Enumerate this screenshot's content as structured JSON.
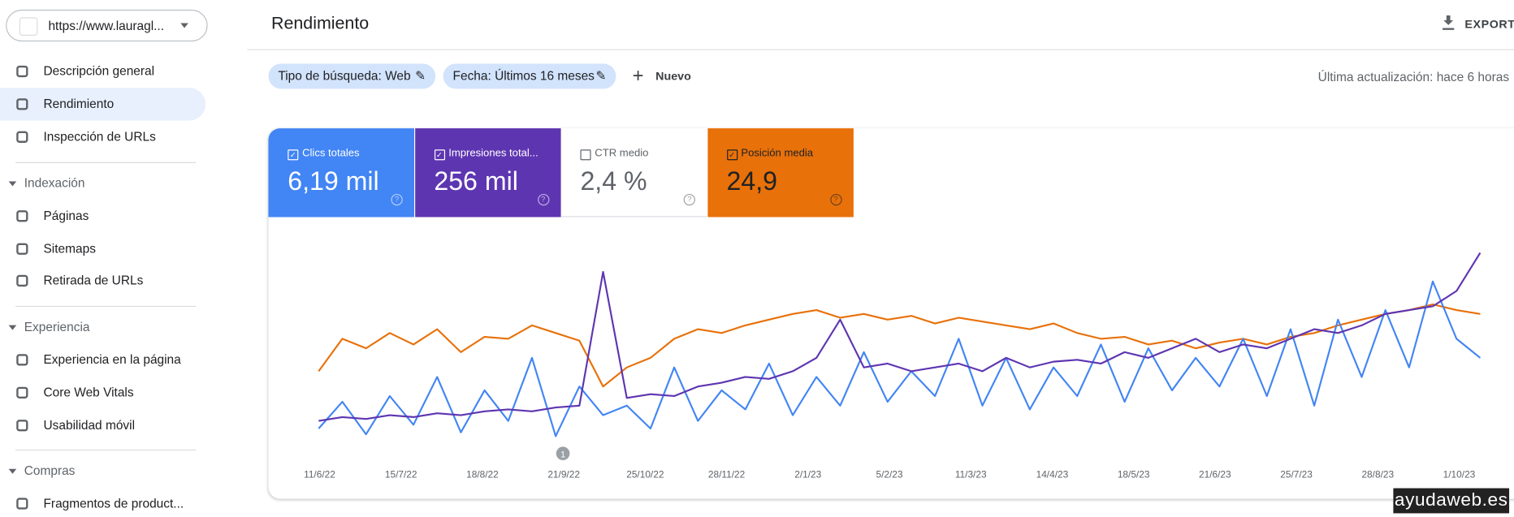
{
  "sidebar": {
    "property": "https://www.lauragl...",
    "items": [
      "Descripción general",
      "Rendimiento",
      "Inspección de URLs"
    ],
    "sections": [
      {
        "title": "Indexación",
        "items": [
          "Páginas",
          "Sitemaps",
          "Retirada de URLs"
        ]
      },
      {
        "title": "Experiencia",
        "items": [
          "Experiencia en la página",
          "Core Web Vitals",
          "Usabilidad móvil"
        ]
      },
      {
        "title": "Compras",
        "items": [
          "Fragmentos de product..."
        ]
      }
    ]
  },
  "header": {
    "title": "Rendimiento",
    "export": "EXPORTA"
  },
  "filters": {
    "chips": [
      "Tipo de búsqueda: Web",
      "Fecha: Últimos 16 meses"
    ],
    "new": "Nuevo",
    "updated": "Última actualización: hace 6 horas"
  },
  "cards": [
    {
      "label": "Clics totales",
      "value": "6,19 mil",
      "checked": true,
      "color": "#4285f4"
    },
    {
      "label": "Impresiones total...",
      "value": "256 mil",
      "checked": true,
      "color": "#5e35b1"
    },
    {
      "label": "CTR medio",
      "value": "2,4 %",
      "checked": false,
      "color": "#ffffff"
    },
    {
      "label": "Posición media",
      "value": "24,9",
      "checked": true,
      "color": "#e8710a"
    }
  ],
  "chart": {
    "type": "line",
    "ylim": [
      0,
      100
    ],
    "xticks": [
      "11/6/22",
      "15/7/22",
      "18/8/22",
      "21/9/22",
      "25/10/22",
      "28/11/22",
      "2/1/23",
      "5/2/23",
      "11/3/23",
      "14/4/23",
      "18/5/23",
      "21/6/23",
      "25/7/23",
      "28/8/23",
      "1/10/23"
    ],
    "annotation": "1",
    "series": [
      {
        "color": "#e8710a",
        "values": [
          38,
          55,
          50,
          58,
          52,
          60,
          48,
          56,
          55,
          62,
          58,
          54,
          30,
          40,
          45,
          55,
          60,
          58,
          62,
          65,
          68,
          70,
          66,
          68,
          65,
          67,
          63,
          66,
          64,
          62,
          60,
          63,
          58,
          55,
          56,
          52,
          54,
          50,
          53,
          55,
          52,
          56,
          58,
          62,
          65,
          68,
          70,
          73,
          70,
          68
        ]
      },
      {
        "color": "#4285f4",
        "values": [
          8,
          22,
          5,
          25,
          10,
          35,
          6,
          28,
          12,
          45,
          4,
          30,
          15,
          20,
          8,
          40,
          12,
          28,
          18,
          42,
          15,
          35,
          20,
          48,
          22,
          38,
          25,
          55,
          20,
          45,
          18,
          40,
          25,
          52,
          22,
          50,
          28,
          45,
          30,
          55,
          25,
          60,
          20,
          65,
          35,
          70,
          40,
          85,
          55,
          45
        ]
      },
      {
        "color": "#5e35b1",
        "values": [
          12,
          14,
          13,
          15,
          14,
          16,
          15,
          17,
          18,
          17,
          19,
          20,
          90,
          24,
          26,
          25,
          30,
          32,
          35,
          34,
          38,
          45,
          65,
          40,
          42,
          38,
          40,
          42,
          38,
          45,
          40,
          43,
          44,
          42,
          48,
          45,
          50,
          55,
          48,
          52,
          50,
          55,
          60,
          58,
          62,
          68,
          70,
          72,
          80,
          100
        ]
      }
    ]
  },
  "watermark": "ayudaweb.es"
}
